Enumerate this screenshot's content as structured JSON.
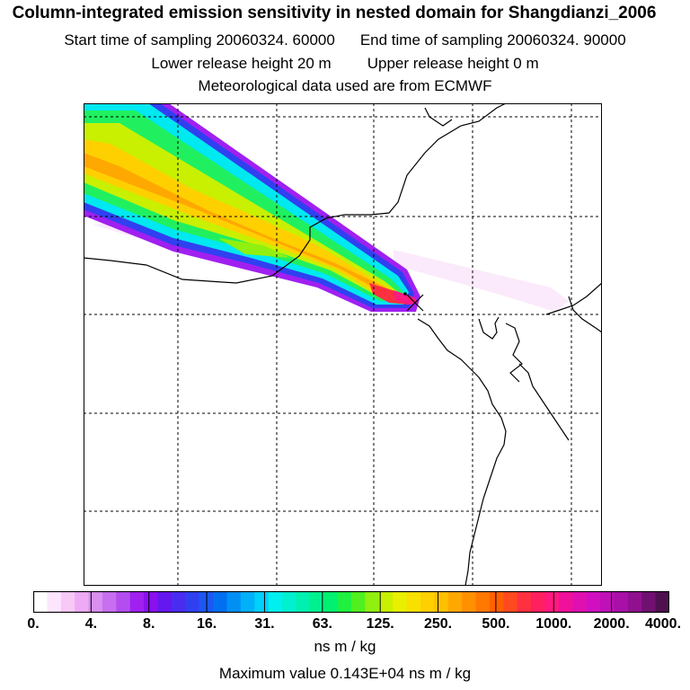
{
  "header": {
    "title": "Column-integrated emission sensitivity in nested domain for Shangdianzi_2006",
    "start_label": "Start time of sampling 20060324. 60000",
    "end_label": "End time of sampling 20060324. 90000",
    "lower_release": "Lower release height   20 m",
    "upper_release": "Upper release height    0 m",
    "met_source": "Meteorological data used are from ECMWF"
  },
  "map": {
    "station": "Shangdianzi",
    "plume_max_color": "#ff1a6a",
    "coastline_color": "#000000",
    "grid_line_style": "dashed"
  },
  "colorbar": {
    "tick_labels": [
      "0.",
      "4.",
      "8.",
      "16.",
      "31.",
      "63.",
      "125.",
      "250.",
      "500.",
      "1000.",
      "2000.",
      "4000."
    ],
    "colors": [
      "#ffffff",
      "#fde6fd",
      "#f7c9f7",
      "#eeaaf4",
      "#d88ff0",
      "#c86ef0",
      "#b44df0",
      "#a020f0",
      "#8a10f0",
      "#6418f0",
      "#4a2cf0",
      "#3040f0",
      "#1c58f0",
      "#0070f0",
      "#0090f4",
      "#00b0f8",
      "#00d0fc",
      "#00f0f0",
      "#00f0d0",
      "#00f0b0",
      "#00f090",
      "#00f070",
      "#20f040",
      "#50f020",
      "#90f010",
      "#c8f000",
      "#e8f000",
      "#f8e000",
      "#ffd000",
      "#ffc000",
      "#ffa800",
      "#ff9000",
      "#ff7800",
      "#ff6000",
      "#ff4a20",
      "#ff3040",
      "#ff2060",
      "#ff1a80",
      "#f0109a",
      "#e010b0",
      "#d010c0",
      "#c010b8",
      "#a810a8",
      "#901090",
      "#701070",
      "#501050"
    ],
    "units": "ns m / kg"
  },
  "footer": {
    "max_value": "Maximum value  0.143E+04 ns m / kg"
  }
}
